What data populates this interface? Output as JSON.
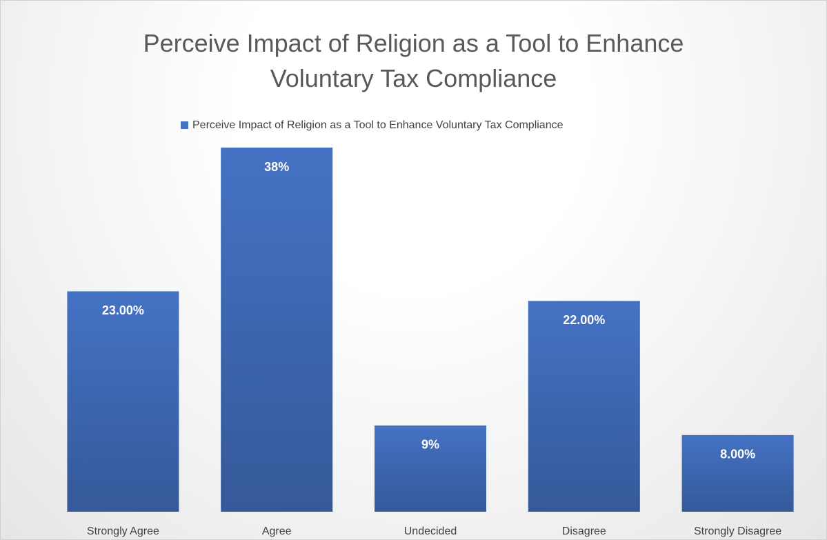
{
  "chart_data": {
    "type": "bar",
    "title": "Perceive Impact of Religion as a Tool to Enhance Voluntary Tax Compliance",
    "categories": [
      "Strongly Agree",
      "Agree",
      "Undecided",
      "Disagree",
      "Strongly Disagree"
    ],
    "series": [
      {
        "name": "Perceive Impact of Religion as a Tool to Enhance Voluntary Tax Compliance",
        "color": "#4472c4",
        "values": [
          23,
          38,
          9,
          22,
          8
        ],
        "value_labels": [
          "23.00%",
          "38%",
          "9%",
          "22.00%",
          "8.00%"
        ]
      }
    ]
  }
}
